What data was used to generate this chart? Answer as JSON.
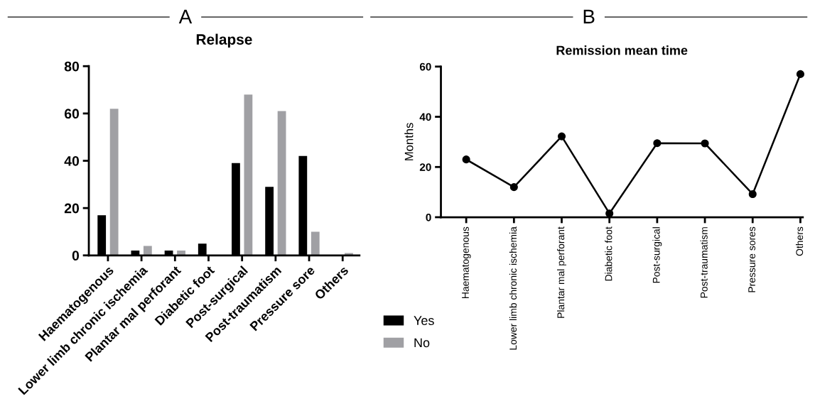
{
  "chart_data": [
    {
      "type": "bar",
      "title": "Relapse",
      "annotations": [
        "A"
      ],
      "categories": [
        "Haematogenous",
        "Lower limb chronic ischemia",
        "Plantar mal perforant",
        "Diabetic foot",
        "Post-surgical",
        "Post-traumatism",
        "Pressure sore",
        "Others"
      ],
      "series": [
        {
          "name": "Yes",
          "color": "#000000",
          "values": [
            17,
            2,
            2,
            5,
            39,
            29,
            42,
            0
          ]
        },
        {
          "name": "No",
          "color": "#a0a0a4",
          "values": [
            62,
            4,
            2,
            0,
            68,
            61,
            10,
            1
          ]
        }
      ],
      "ylim": [
        0,
        80
      ],
      "yticks": [
        0,
        20,
        40,
        60,
        80
      ],
      "grid": false,
      "legend": "bottom right"
    },
    {
      "type": "line",
      "title": "Remission mean time",
      "ylabel": "Months",
      "annotations": [
        "B"
      ],
      "categories": [
        "Haematogenous",
        "Lower limb chronic ischemia",
        "Plantar mal perforant",
        "Diabetic foot",
        "Post-surgical",
        "Post-traumatism",
        "Pressure sores",
        "Others"
      ],
      "series": [
        {
          "color": "#000000",
          "values": [
            23,
            12,
            32.2,
            1.5,
            29.5,
            29.4,
            9.2,
            57
          ]
        }
      ],
      "ylim": [
        0,
        60
      ],
      "yticks": [
        0,
        20,
        40,
        60
      ],
      "grid": false,
      "legend": false,
      "marker": "circle",
      "line_style": "solid"
    }
  ]
}
